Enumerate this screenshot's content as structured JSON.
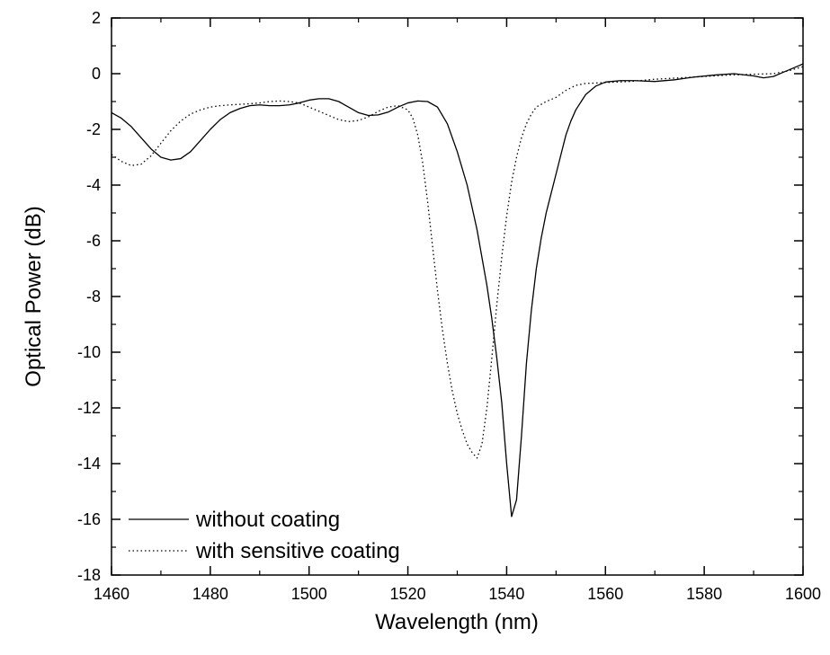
{
  "chart_data": {
    "type": "line",
    "title": "",
    "xlabel": "Wavelength (nm)",
    "ylabel": "Optical Power (dB)",
    "xlim": [
      1460,
      1600
    ],
    "ylim": [
      -18,
      2
    ],
    "x_ticks": [
      1460,
      1480,
      1500,
      1520,
      1540,
      1560,
      1580,
      1600
    ],
    "y_ticks": [
      -18,
      -16,
      -14,
      -12,
      -10,
      -8,
      -6,
      -4,
      -2,
      0,
      2
    ],
    "grid": false,
    "legend_position": "bottom-left",
    "series": [
      {
        "name": "without coating",
        "style": "solid",
        "color": "#000000",
        "points": [
          [
            1460,
            -1.4
          ],
          [
            1462,
            -1.6
          ],
          [
            1464,
            -1.9
          ],
          [
            1466,
            -2.3
          ],
          [
            1468,
            -2.7
          ],
          [
            1470,
            -3.0
          ],
          [
            1472,
            -3.1
          ],
          [
            1474,
            -3.05
          ],
          [
            1476,
            -2.8
          ],
          [
            1478,
            -2.4
          ],
          [
            1480,
            -2.0
          ],
          [
            1482,
            -1.65
          ],
          [
            1484,
            -1.4
          ],
          [
            1486,
            -1.25
          ],
          [
            1488,
            -1.15
          ],
          [
            1490,
            -1.12
          ],
          [
            1492,
            -1.15
          ],
          [
            1494,
            -1.15
          ],
          [
            1496,
            -1.12
          ],
          [
            1498,
            -1.05
          ],
          [
            1500,
            -0.95
          ],
          [
            1502,
            -0.9
          ],
          [
            1504,
            -0.9
          ],
          [
            1506,
            -1.0
          ],
          [
            1508,
            -1.2
          ],
          [
            1510,
            -1.4
          ],
          [
            1512,
            -1.5
          ],
          [
            1514,
            -1.48
          ],
          [
            1516,
            -1.38
          ],
          [
            1518,
            -1.2
          ],
          [
            1520,
            -1.05
          ],
          [
            1522,
            -0.98
          ],
          [
            1524,
            -1.0
          ],
          [
            1526,
            -1.2
          ],
          [
            1528,
            -1.8
          ],
          [
            1530,
            -2.8
          ],
          [
            1532,
            -4.0
          ],
          [
            1534,
            -5.6
          ],
          [
            1536,
            -7.6
          ],
          [
            1537,
            -8.8
          ],
          [
            1538,
            -10.2
          ],
          [
            1539,
            -11.8
          ],
          [
            1540,
            -14.0
          ],
          [
            1541,
            -15.9
          ],
          [
            1542,
            -15.3
          ],
          [
            1543,
            -13.0
          ],
          [
            1544,
            -10.4
          ],
          [
            1545,
            -8.5
          ],
          [
            1546,
            -7.0
          ],
          [
            1547,
            -5.9
          ],
          [
            1548,
            -5.0
          ],
          [
            1549,
            -4.3
          ],
          [
            1550,
            -3.6
          ],
          [
            1551,
            -2.9
          ],
          [
            1552,
            -2.2
          ],
          [
            1553,
            -1.7
          ],
          [
            1554,
            -1.3
          ],
          [
            1556,
            -0.75
          ],
          [
            1558,
            -0.45
          ],
          [
            1560,
            -0.3
          ],
          [
            1563,
            -0.25
          ],
          [
            1566,
            -0.25
          ],
          [
            1570,
            -0.28
          ],
          [
            1574,
            -0.22
          ],
          [
            1578,
            -0.12
          ],
          [
            1582,
            -0.05
          ],
          [
            1586,
            0.0
          ],
          [
            1590,
            -0.08
          ],
          [
            1592,
            -0.15
          ],
          [
            1594,
            -0.1
          ],
          [
            1596,
            0.05
          ],
          [
            1598,
            0.2
          ],
          [
            1600,
            0.35
          ]
        ]
      },
      {
        "name": "with sensitive coating",
        "style": "dotted",
        "color": "#000000",
        "points": [
          [
            1460,
            -2.9
          ],
          [
            1462,
            -3.15
          ],
          [
            1464,
            -3.3
          ],
          [
            1466,
            -3.25
          ],
          [
            1468,
            -2.95
          ],
          [
            1470,
            -2.5
          ],
          [
            1472,
            -2.05
          ],
          [
            1474,
            -1.7
          ],
          [
            1476,
            -1.45
          ],
          [
            1478,
            -1.3
          ],
          [
            1480,
            -1.2
          ],
          [
            1482,
            -1.15
          ],
          [
            1484,
            -1.12
          ],
          [
            1486,
            -1.1
          ],
          [
            1488,
            -1.08
          ],
          [
            1490,
            -1.05
          ],
          [
            1492,
            -1.0
          ],
          [
            1494,
            -0.98
          ],
          [
            1496,
            -1.0
          ],
          [
            1498,
            -1.05
          ],
          [
            1500,
            -1.2
          ],
          [
            1502,
            -1.35
          ],
          [
            1504,
            -1.5
          ],
          [
            1506,
            -1.65
          ],
          [
            1508,
            -1.72
          ],
          [
            1510,
            -1.68
          ],
          [
            1512,
            -1.55
          ],
          [
            1514,
            -1.35
          ],
          [
            1516,
            -1.2
          ],
          [
            1518,
            -1.15
          ],
          [
            1520,
            -1.3
          ],
          [
            1521,
            -1.6
          ],
          [
            1522,
            -2.2
          ],
          [
            1523,
            -3.2
          ],
          [
            1524,
            -4.6
          ],
          [
            1525,
            -6.2
          ],
          [
            1526,
            -7.8
          ],
          [
            1527,
            -9.2
          ],
          [
            1528,
            -10.4
          ],
          [
            1529,
            -11.4
          ],
          [
            1530,
            -12.2
          ],
          [
            1531,
            -12.8
          ],
          [
            1532,
            -13.3
          ],
          [
            1533,
            -13.6
          ],
          [
            1534,
            -13.8
          ],
          [
            1535,
            -13.3
          ],
          [
            1536,
            -12.0
          ],
          [
            1537,
            -10.2
          ],
          [
            1538,
            -8.3
          ],
          [
            1539,
            -6.6
          ],
          [
            1540,
            -5.1
          ],
          [
            1541,
            -3.9
          ],
          [
            1542,
            -3.0
          ],
          [
            1543,
            -2.3
          ],
          [
            1544,
            -1.8
          ],
          [
            1545,
            -1.45
          ],
          [
            1546,
            -1.2
          ],
          [
            1548,
            -1.0
          ],
          [
            1550,
            -0.85
          ],
          [
            1552,
            -0.6
          ],
          [
            1554,
            -0.42
          ],
          [
            1556,
            -0.35
          ],
          [
            1560,
            -0.32
          ],
          [
            1565,
            -0.28
          ],
          [
            1570,
            -0.2
          ],
          [
            1575,
            -0.15
          ],
          [
            1580,
            -0.1
          ],
          [
            1585,
            -0.05
          ],
          [
            1590,
            -0.02
          ],
          [
            1594,
            0.0
          ],
          [
            1597,
            0.1
          ],
          [
            1600,
            0.25
          ]
        ]
      }
    ]
  }
}
